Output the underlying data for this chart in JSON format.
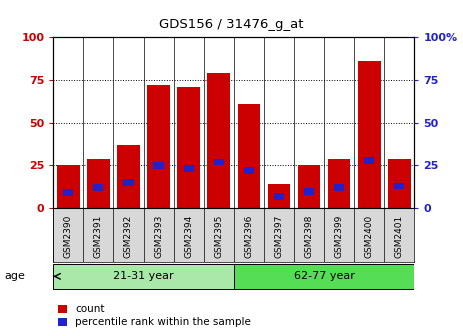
{
  "title": "GDS156 / 31476_g_at",
  "samples": [
    "GSM2390",
    "GSM2391",
    "GSM2392",
    "GSM2393",
    "GSM2394",
    "GSM2395",
    "GSM2396",
    "GSM2397",
    "GSM2398",
    "GSM2399",
    "GSM2400",
    "GSM2401"
  ],
  "count_values": [
    25,
    29,
    37,
    72,
    71,
    79,
    61,
    14,
    25,
    29,
    86,
    29
  ],
  "percentile_values": [
    9,
    12,
    15,
    25,
    23,
    27,
    22,
    7,
    10,
    12,
    28,
    13
  ],
  "groups": [
    {
      "label": "21-31 year",
      "start": 0,
      "end": 6
    },
    {
      "label": "62-77 year",
      "start": 6,
      "end": 12
    }
  ],
  "group_color_light": "#aae8aa",
  "group_color_dark": "#55dd55",
  "bar_color_red": "#cc0000",
  "bar_color_blue": "#2222cc",
  "ylim": [
    0,
    100
  ],
  "yticks": [
    0,
    25,
    50,
    75,
    100
  ],
  "background_color": "#ffffff",
  "xlabel_bg": "#d8d8d8",
  "legend_items": [
    "count",
    "percentile rank within the sample"
  ],
  "age_label": "age",
  "left_ylabel_color": "#cc0000",
  "right_ylabel_color": "#2222cc",
  "title_fontsize": 10,
  "bar_width": 0.75
}
